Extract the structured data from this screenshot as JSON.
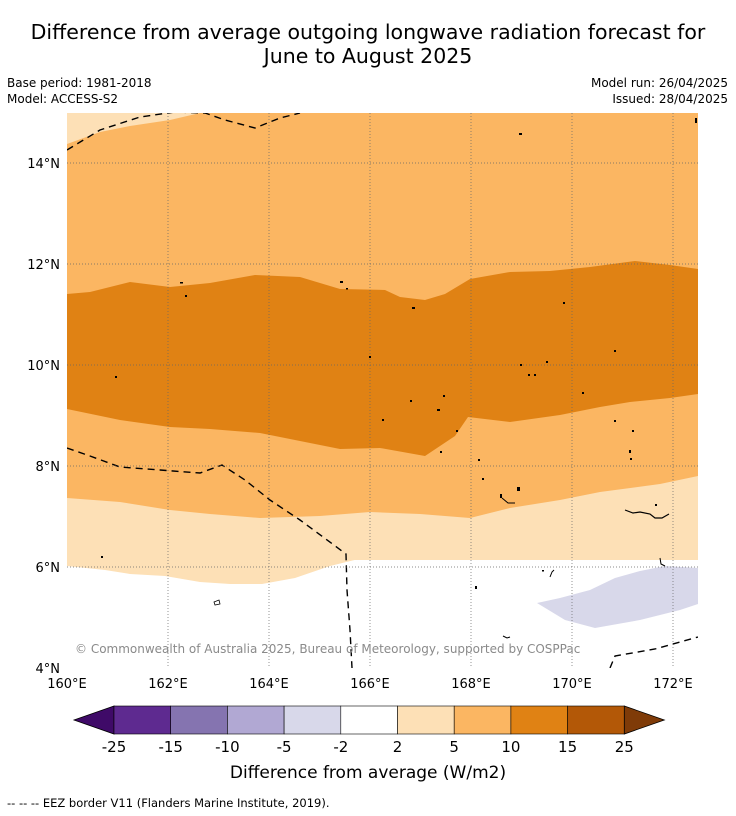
{
  "title_line1": "Difference from average outgoing longwave radiation forecast for",
  "title_line2": "June to August 2025",
  "meta": {
    "base_period": "Base period: 1981-2018",
    "model": "Model: ACCESS-S2",
    "model_run": "Model run: 26/04/2025",
    "issued": "Issued: 28/04/2025"
  },
  "copyright": "© Commonwealth of Australia 2025, Bureau of Meteorology, supported by COSPPac",
  "lat_ticks": [
    "14°N",
    "12°N",
    "10°N",
    "8°N",
    "6°N",
    "4°N"
  ],
  "lon_ticks": [
    "160°E",
    "162°E",
    "164°E",
    "166°E",
    "168°E",
    "170°E",
    "172°E"
  ],
  "colorbar": {
    "label": "Difference from average (W/m2)",
    "ticks": [
      "-25",
      "-15",
      "-10",
      "-5",
      "-2",
      "2",
      "5",
      "10",
      "15",
      "25"
    ],
    "colors": [
      "#3f0a68",
      "#5e2a90",
      "#8574b0",
      "#b1a8d3",
      "#d8d8ea",
      "#ffffff",
      "#fde0b6",
      "#fbb662",
      "#e08214",
      "#b35807",
      "#7f3b08"
    ]
  },
  "footnote": "-- -- -- EEZ border V11 (Flanders Marine Institute, 2019)."
}
